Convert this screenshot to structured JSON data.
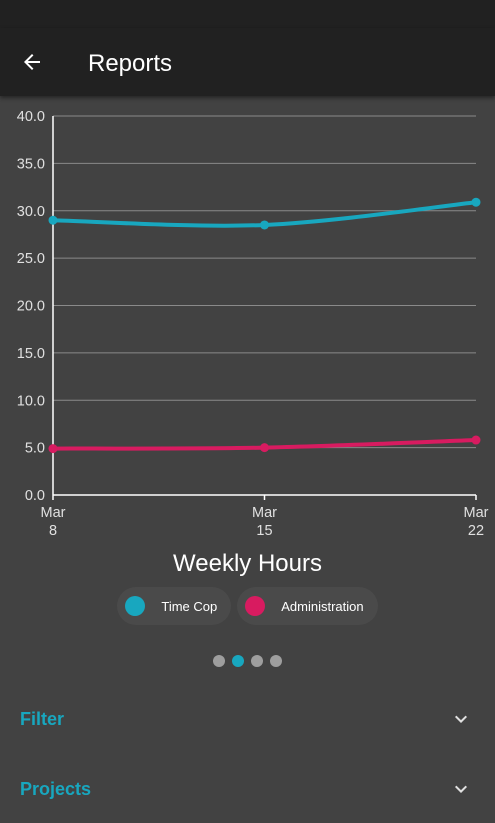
{
  "appbar": {
    "title": "Reports",
    "back_icon": "arrow-back-icon"
  },
  "colors": {
    "appbar_bg": "#212121",
    "background": "#424242",
    "accent": "#18a7bf",
    "series_time_cop": "#18a7bf",
    "series_administration": "#d81b60"
  },
  "chart_data": {
    "type": "line",
    "title": "Weekly Hours",
    "x": [
      "Mar 8",
      "Mar 15",
      "Mar 22"
    ],
    "x_tick_labels": [
      {
        "line1": "Mar",
        "line2": "8"
      },
      {
        "line1": "Mar",
        "line2": "15"
      },
      {
        "line1": "Mar",
        "line2": "22"
      }
    ],
    "y_ticks": [
      "0.0",
      "5.0",
      "10.0",
      "15.0",
      "20.0",
      "25.0",
      "30.0",
      "35.0",
      "40.0"
    ],
    "ylim": [
      0,
      40
    ],
    "grid": true,
    "legend_position": "bottom",
    "series": [
      {
        "name": "Time Cop",
        "values": [
          29.0,
          28.5,
          30.9
        ],
        "color": "#18a7bf"
      },
      {
        "name": "Administration",
        "values": [
          4.9,
          5.0,
          5.8
        ],
        "color": "#d81b60"
      }
    ]
  },
  "pager": {
    "count": 4,
    "active_index": 1
  },
  "sections": {
    "filter": {
      "title": "Filter",
      "icon": "chevron-down-icon"
    },
    "projects": {
      "title": "Projects",
      "icon": "chevron-down-icon"
    }
  }
}
